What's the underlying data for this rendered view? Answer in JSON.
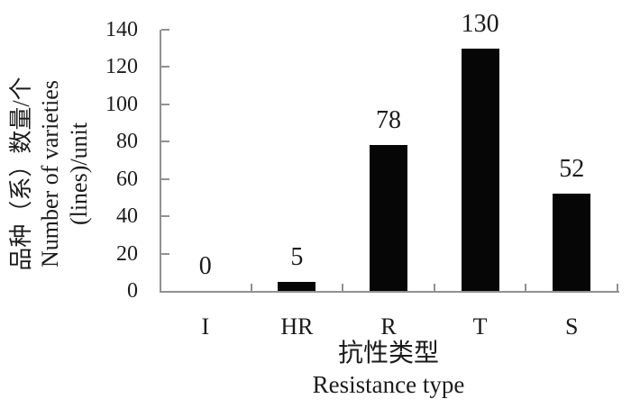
{
  "chart_data": {
    "type": "bar",
    "title": "",
    "categories": [
      "I",
      "HR",
      "R",
      "T",
      "S"
    ],
    "values": [
      0,
      5,
      78,
      130,
      52
    ],
    "bar_labels": [
      "0",
      "5",
      "78",
      "130",
      "52"
    ],
    "x_axis": {
      "title_zh": "抗性类型",
      "title_en": "Resistance type"
    },
    "y_axis": {
      "title_zh": "品种（系）数量/个",
      "title_en_line1": "Number of varieties",
      "title_en_line2": "(lines)/unit",
      "min": 0,
      "max": 140,
      "tick_interval": 20,
      "ticks": [
        0,
        20,
        40,
        60,
        80,
        100,
        120,
        140
      ]
    },
    "legend": "none",
    "grid": "off",
    "data_label_position": "above-bar",
    "colors": {
      "bar": "#060606",
      "axis": "#919191",
      "text": "#1b1b1b",
      "background": "#ffffff"
    }
  }
}
